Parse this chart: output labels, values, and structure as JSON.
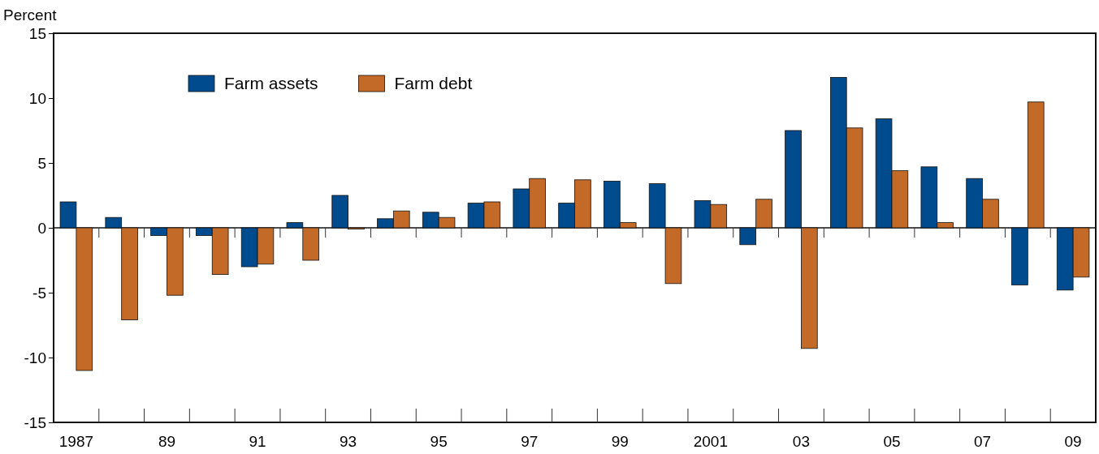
{
  "chart_data": {
    "type": "bar",
    "ylabel": "Percent",
    "categories": [
      "1987",
      null,
      "89",
      null,
      "91",
      null,
      "93",
      null,
      "95",
      null,
      "97",
      null,
      "99",
      null,
      "2001",
      null,
      "03",
      null,
      "05",
      null,
      "07",
      null,
      "09"
    ],
    "series": [
      {
        "name": "Farm assets",
        "color": "#004b8d",
        "values": [
          2.0,
          0.8,
          -0.6,
          -0.6,
          -3.0,
          0.4,
          2.5,
          0.7,
          1.2,
          1.9,
          3.0,
          1.9,
          3.6,
          3.4,
          2.1,
          -1.3,
          7.5,
          11.6,
          8.4,
          4.7,
          3.8,
          -4.4,
          -4.8
        ]
      },
      {
        "name": "Farm debt",
        "color": "#c46a28",
        "values": [
          -11.0,
          -7.1,
          -5.2,
          -3.6,
          -2.8,
          -2.5,
          -0.1,
          1.3,
          0.8,
          2.0,
          3.8,
          3.7,
          0.4,
          -4.3,
          1.8,
          2.2,
          -9.3,
          7.7,
          4.4,
          0.4,
          2.2,
          9.7,
          -3.8
        ]
      }
    ],
    "ylim": [
      -15,
      15
    ],
    "yticks": [
      -15,
      -10,
      -5,
      0,
      5,
      10,
      15
    ],
    "legend": "top left"
  }
}
